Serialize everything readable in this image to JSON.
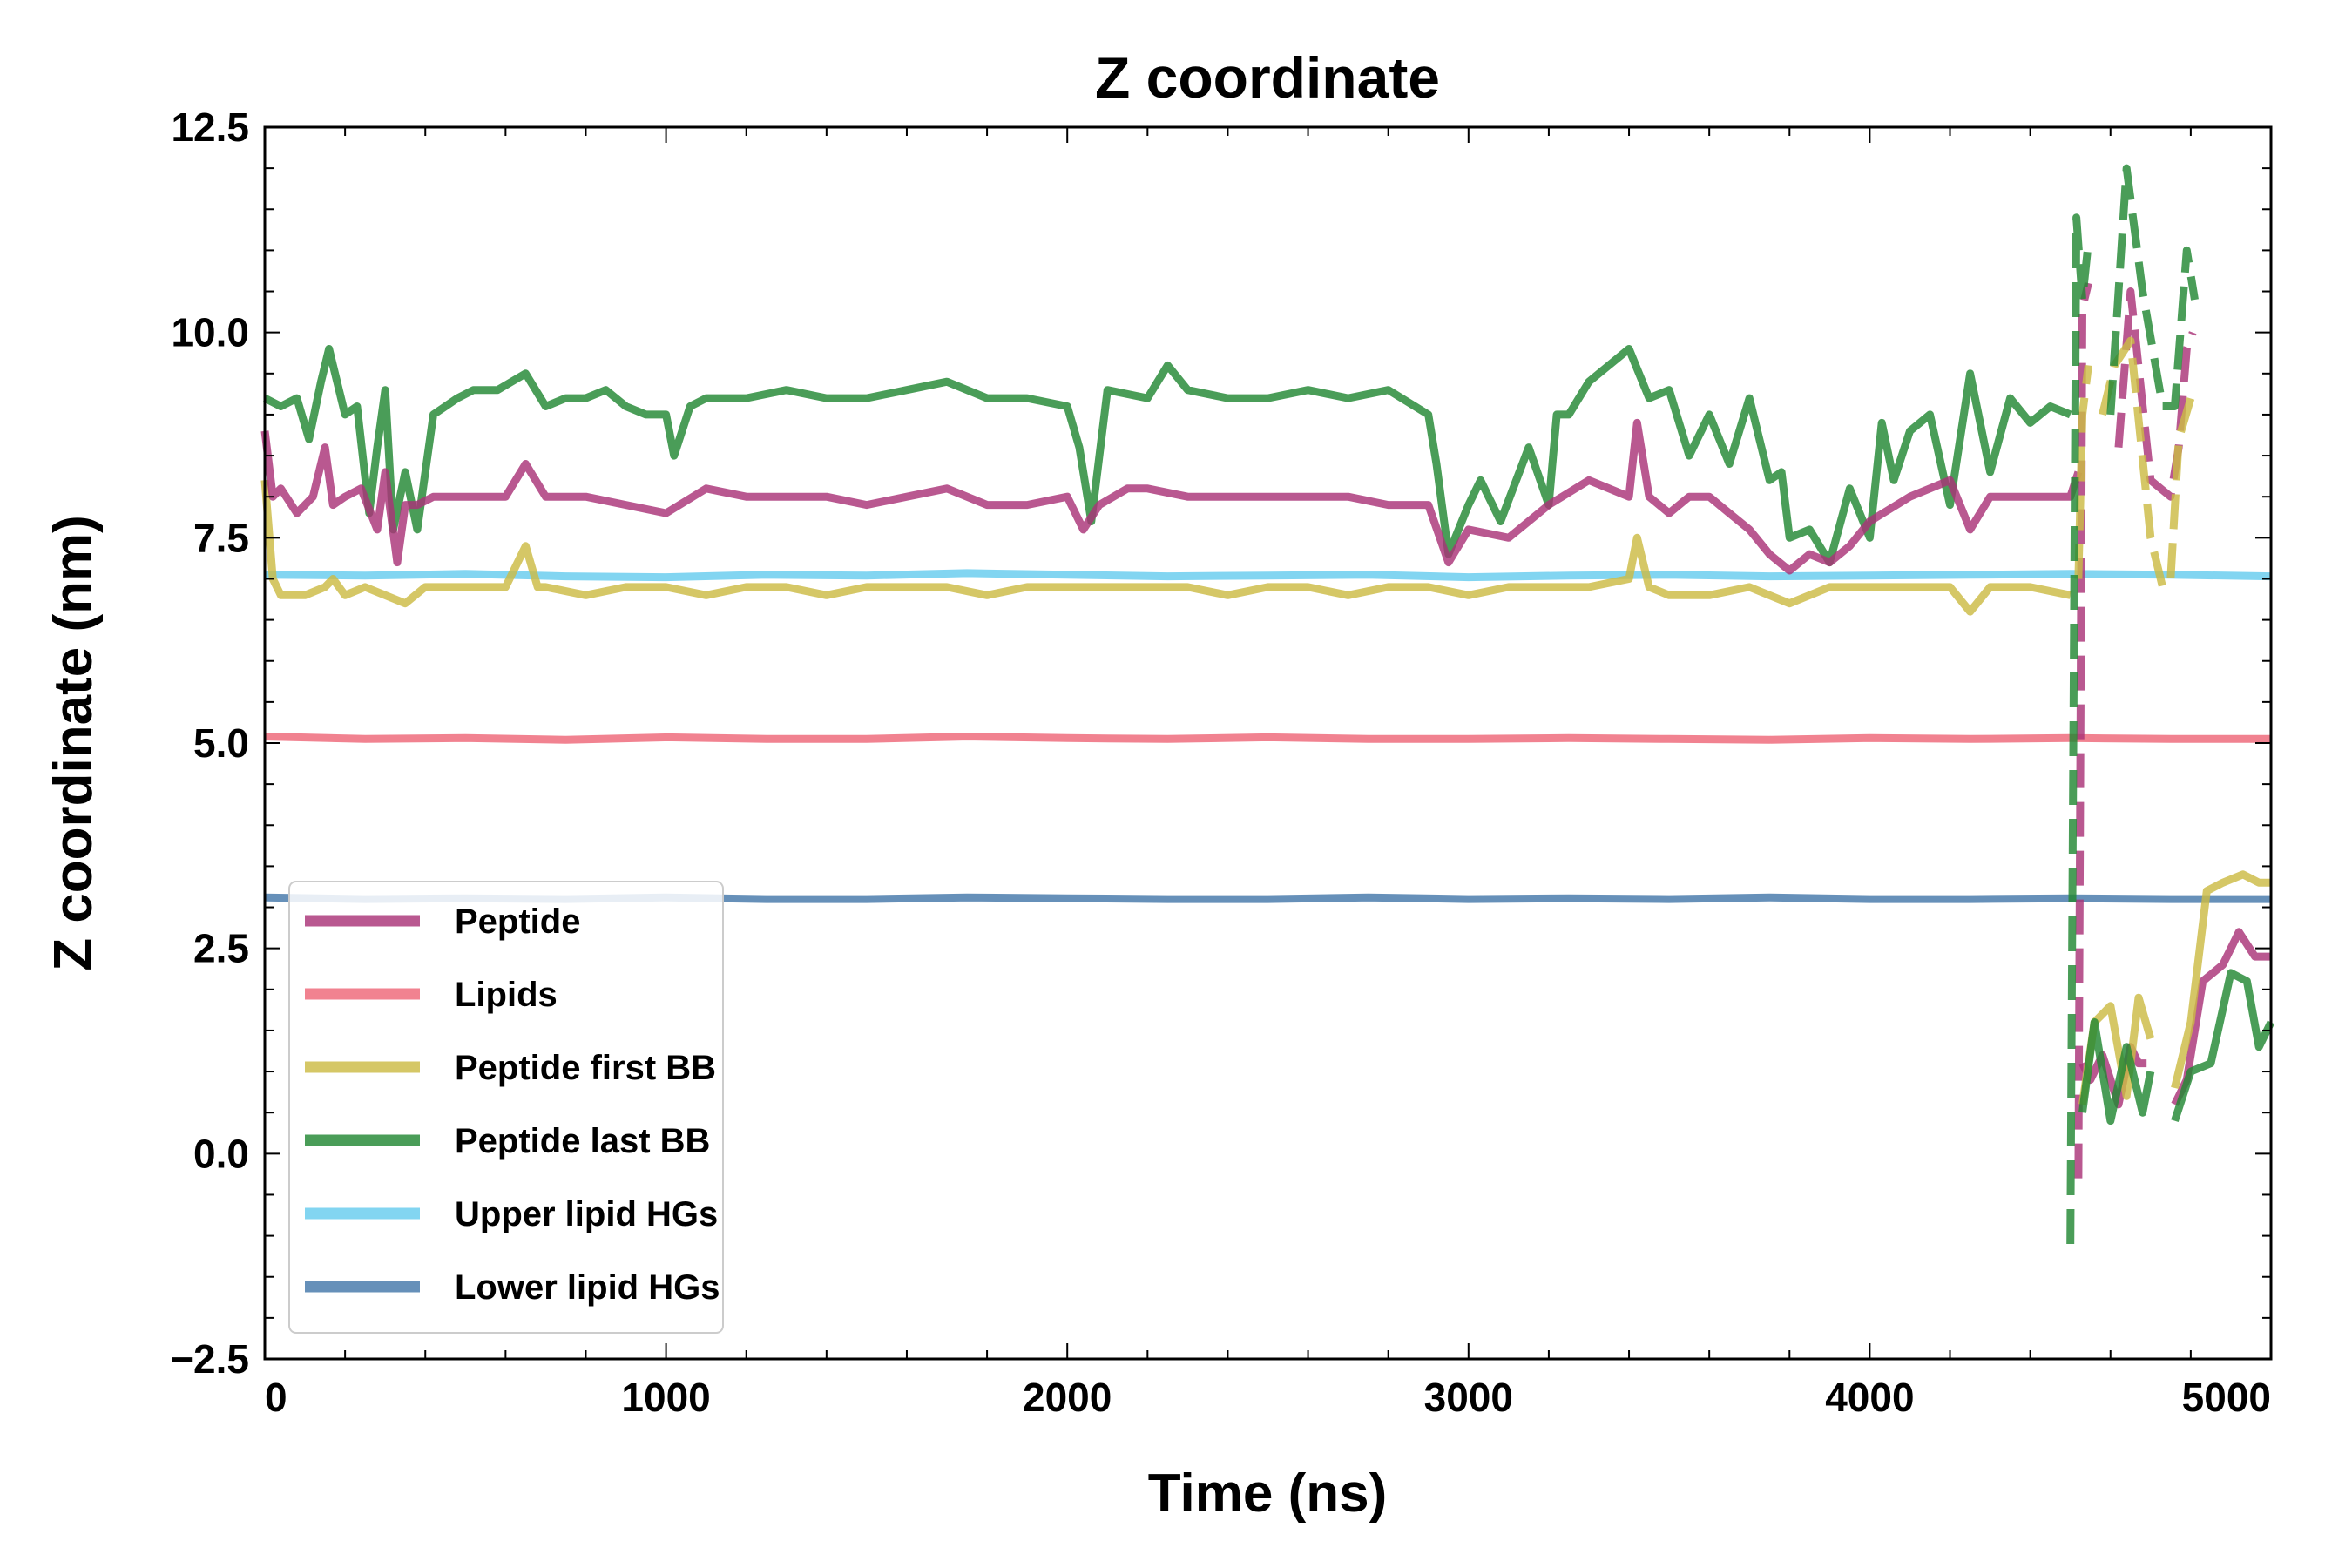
{
  "chart_data": {
    "type": "line",
    "title": "Z coordinate",
    "xlabel": "Time (ns)",
    "ylabel": "Z coordinate (nm)",
    "xlim": [
      0,
      5000
    ],
    "ylim": [
      -2.5,
      12.5
    ],
    "xticks": [
      0,
      1000,
      2000,
      3000,
      4000,
      5000
    ],
    "xtick_labels": [
      "0",
      "1000",
      "2000",
      "3000",
      "4000",
      "5000"
    ],
    "yticks": [
      -2.5,
      0.0,
      2.5,
      5.0,
      7.5,
      10.0,
      12.5
    ],
    "ytick_labels": [
      "−2.5",
      "0.0",
      "2.5",
      "5.0",
      "7.5",
      "10.0",
      "12.5"
    ],
    "grid": false,
    "legend_position": "lower-left",
    "series": [
      {
        "name": "Peptide",
        "color": "#aa3377",
        "x": [
          0,
          20,
          40,
          80,
          120,
          150,
          170,
          200,
          240,
          280,
          300,
          330,
          350,
          380,
          420,
          500,
          600,
          650,
          700,
          800,
          900,
          1000,
          1100,
          1200,
          1300,
          1400,
          1500,
          1600,
          1700,
          1800,
          1900,
          2000,
          2040,
          2080,
          2150,
          2200,
          2300,
          2400,
          2500,
          2600,
          2700,
          2800,
          2900,
          2950,
          3000,
          3100,
          3200,
          3300,
          3400,
          3420,
          3450,
          3500,
          3550,
          3600,
          3650,
          3700,
          3750,
          3800,
          3850,
          3900,
          3950,
          4000,
          4100,
          4200,
          4250,
          4300,
          4400,
          4500,
          4520
        ],
        "values": [
          8.8,
          8.0,
          8.1,
          7.8,
          8.0,
          8.6,
          7.9,
          8.0,
          8.1,
          7.6,
          8.3,
          7.2,
          7.9,
          7.9,
          8.0,
          8.0,
          8.0,
          8.4,
          8.0,
          8.0,
          7.9,
          7.8,
          8.1,
          8.0,
          8.0,
          8.0,
          7.9,
          8.0,
          8.1,
          7.9,
          7.9,
          8.0,
          7.6,
          7.9,
          8.1,
          8.1,
          8.0,
          8.0,
          8.0,
          8.0,
          8.0,
          7.9,
          7.9,
          7.2,
          7.6,
          7.5,
          7.9,
          8.2,
          8.0,
          8.9,
          8.0,
          7.8,
          8.0,
          8.0,
          7.8,
          7.6,
          7.3,
          7.1,
          7.3,
          7.2,
          7.4,
          7.7,
          8.0,
          8.2,
          7.6,
          8.0,
          8.0,
          8.0,
          8.3
        ]
      },
      {
        "name": "Lipids",
        "color": "#ee6677",
        "x": [
          0,
          250,
          500,
          750,
          1000,
          1250,
          1500,
          1750,
          2000,
          2250,
          2500,
          2750,
          3000,
          3250,
          3500,
          3750,
          4000,
          4250,
          4500,
          4750,
          5000
        ],
        "values": [
          5.08,
          5.05,
          5.06,
          5.04,
          5.07,
          5.05,
          5.05,
          5.08,
          5.06,
          5.05,
          5.07,
          5.05,
          5.05,
          5.06,
          5.05,
          5.04,
          5.06,
          5.05,
          5.06,
          5.05,
          5.05
        ]
      },
      {
        "name": "Peptide first BB",
        "color": "#ccbb44",
        "x": [
          0,
          20,
          40,
          100,
          150,
          170,
          200,
          250,
          300,
          350,
          400,
          500,
          600,
          650,
          680,
          700,
          800,
          900,
          1000,
          1100,
          1200,
          1300,
          1400,
          1500,
          1600,
          1700,
          1800,
          1900,
          2000,
          2100,
          2200,
          2300,
          2400,
          2500,
          2600,
          2700,
          2800,
          2900,
          3000,
          3100,
          3200,
          3300,
          3400,
          3420,
          3450,
          3500,
          3600,
          3700,
          3800,
          3900,
          4000,
          4100,
          4200,
          4250,
          4300,
          4400,
          4500
        ],
        "values": [
          8.2,
          7.0,
          6.8,
          6.8,
          6.9,
          7.0,
          6.8,
          6.9,
          6.8,
          6.7,
          6.9,
          6.9,
          6.9,
          7.4,
          6.9,
          6.9,
          6.8,
          6.9,
          6.9,
          6.8,
          6.9,
          6.9,
          6.8,
          6.9,
          6.9,
          6.9,
          6.8,
          6.9,
          6.9,
          6.9,
          6.9,
          6.9,
          6.8,
          6.9,
          6.9,
          6.8,
          6.9,
          6.9,
          6.8,
          6.9,
          6.9,
          6.9,
          7.0,
          7.5,
          6.9,
          6.8,
          6.8,
          6.9,
          6.7,
          6.9,
          6.9,
          6.9,
          6.9,
          6.6,
          6.9,
          6.9,
          6.8
        ]
      },
      {
        "name": "Peptide last BB",
        "color": "#228833",
        "x": [
          0,
          40,
          80,
          110,
          140,
          160,
          200,
          230,
          260,
          280,
          300,
          320,
          350,
          380,
          420,
          480,
          520,
          580,
          650,
          700,
          750,
          800,
          850,
          900,
          950,
          1000,
          1020,
          1060,
          1100,
          1200,
          1300,
          1400,
          1500,
          1600,
          1700,
          1800,
          1900,
          2000,
          2030,
          2060,
          2100,
          2200,
          2250,
          2300,
          2400,
          2500,
          2600,
          2700,
          2800,
          2900,
          2920,
          2950,
          3000,
          3030,
          3080,
          3150,
          3200,
          3220,
          3250,
          3300,
          3400,
          3450,
          3500,
          3550,
          3600,
          3650,
          3700,
          3750,
          3780,
          3800,
          3850,
          3900,
          3950,
          4000,
          4030,
          4060,
          4100,
          4150,
          4200,
          4250,
          4300,
          4350,
          4400,
          4450,
          4500
        ],
        "values": [
          9.2,
          9.1,
          9.2,
          8.7,
          9.4,
          9.8,
          9.0,
          9.1,
          7.8,
          8.6,
          9.3,
          7.6,
          8.3,
          7.6,
          9.0,
          9.2,
          9.3,
          9.3,
          9.5,
          9.1,
          9.2,
          9.2,
          9.3,
          9.1,
          9.0,
          9.0,
          8.5,
          9.1,
          9.2,
          9.2,
          9.3,
          9.2,
          9.2,
          9.3,
          9.4,
          9.2,
          9.2,
          9.1,
          8.6,
          7.7,
          9.3,
          9.2,
          9.6,
          9.3,
          9.2,
          9.2,
          9.3,
          9.2,
          9.3,
          9.0,
          8.4,
          7.3,
          7.9,
          8.2,
          7.7,
          8.6,
          7.9,
          9.0,
          9.0,
          9.4,
          9.8,
          9.2,
          9.3,
          8.5,
          9.0,
          8.4,
          9.2,
          8.2,
          8.3,
          7.5,
          7.6,
          7.2,
          8.1,
          7.5,
          8.9,
          8.2,
          8.8,
          9.0,
          7.9,
          9.5,
          8.3,
          9.2,
          8.9,
          9.1,
          9.0
        ]
      },
      {
        "name": "Upper lipid HGs",
        "color": "#66ccee",
        "x": [
          0,
          250,
          500,
          750,
          1000,
          1250,
          1500,
          1750,
          2000,
          2250,
          2500,
          2750,
          3000,
          3250,
          3500,
          3750,
          4000,
          4250,
          4500,
          4750,
          5000
        ],
        "values": [
          7.05,
          7.04,
          7.06,
          7.03,
          7.02,
          7.05,
          7.04,
          7.07,
          7.05,
          7.03,
          7.04,
          7.05,
          7.02,
          7.04,
          7.05,
          7.03,
          7.04,
          7.05,
          7.06,
          7.05,
          7.03
        ]
      },
      {
        "name": "Lower lipid HGs",
        "color": "#4477aa",
        "x": [
          0,
          250,
          500,
          750,
          1000,
          1250,
          1500,
          1750,
          2000,
          2250,
          2500,
          2750,
          3000,
          3250,
          3500,
          3750,
          4000,
          4250,
          4500,
          4750,
          5000
        ],
        "values": [
          3.12,
          3.1,
          3.11,
          3.1,
          3.12,
          3.1,
          3.1,
          3.12,
          3.11,
          3.1,
          3.1,
          3.12,
          3.1,
          3.11,
          3.1,
          3.12,
          3.1,
          3.1,
          3.11,
          3.1,
          3.1
        ]
      }
    ],
    "fragments": [
      {
        "color": "#aa3377",
        "x": [
          4520,
          4530,
          4545
        ],
        "values": [
          -0.3,
          10.3,
          10.6
        ],
        "dashed": true
      },
      {
        "color": "#aa3377",
        "x": [
          4620,
          4650,
          4700,
          4750,
          4770,
          4790,
          4805
        ],
        "values": [
          8.6,
          10.5,
          8.2,
          8.0,
          8.6,
          9.8,
          10.0
        ],
        "dashed": true
      },
      {
        "color": "#aa3377",
        "x": [
          4530,
          4550,
          4580,
          4620,
          4650,
          4670,
          4690
        ],
        "values": [
          1.1,
          0.9,
          1.2,
          0.6,
          1.3,
          1.1,
          1.1
        ],
        "dashed": false
      },
      {
        "color": "#aa3377",
        "x": [
          4760,
          4790,
          4830,
          4880,
          4920,
          4960,
          5000
        ],
        "values": [
          0.6,
          0.9,
          2.1,
          2.3,
          2.7,
          2.4,
          2.4
        ],
        "dashed": false
      },
      {
        "color": "#ccbb44",
        "x": [
          4520,
          4530,
          4545
        ],
        "values": [
          7.0,
          9.0,
          9.6
        ],
        "dashed": true
      },
      {
        "color": "#ccbb44",
        "x": [
          4580,
          4610,
          4650,
          4700,
          4730,
          4750,
          4770,
          4800
        ],
        "values": [
          9.0,
          9.6,
          9.9,
          7.5,
          6.9,
          7.0,
          8.7,
          9.2
        ],
        "dashed": true
      },
      {
        "color": "#ccbb44",
        "x": [
          4530,
          4560,
          4600,
          4640,
          4670,
          4700
        ],
        "values": [
          0.6,
          1.6,
          1.8,
          0.7,
          1.9,
          1.4
        ],
        "dashed": false
      },
      {
        "color": "#ccbb44",
        "x": [
          4760,
          4800,
          4840,
          4880,
          4930,
          4970,
          5000
        ],
        "values": [
          0.8,
          1.6,
          3.2,
          3.3,
          3.4,
          3.3,
          3.3
        ],
        "dashed": false
      },
      {
        "color": "#228833",
        "x": [
          4500,
          4515,
          4530,
          4545
        ],
        "values": [
          -1.1,
          11.4,
          10.4,
          11.1
        ],
        "dashed": true
      },
      {
        "color": "#228833",
        "x": [
          4600,
          4640,
          4680,
          4730,
          4760,
          4790,
          4810
        ],
        "values": [
          9.0,
          12.0,
          10.5,
          9.1,
          9.1,
          11.0,
          10.4
        ],
        "dashed": true
      },
      {
        "color": "#228833",
        "x": [
          4530,
          4560,
          4600,
          4640,
          4680,
          4700
        ],
        "values": [
          0.5,
          1.6,
          0.4,
          1.3,
          0.5,
          1.0
        ],
        "dashed": false
      },
      {
        "color": "#228833",
        "x": [
          4760,
          4800,
          4850,
          4900,
          4940,
          4970,
          5000
        ],
        "values": [
          0.4,
          1.0,
          1.1,
          2.2,
          2.1,
          1.3,
          1.6
        ],
        "dashed": false
      }
    ]
  }
}
